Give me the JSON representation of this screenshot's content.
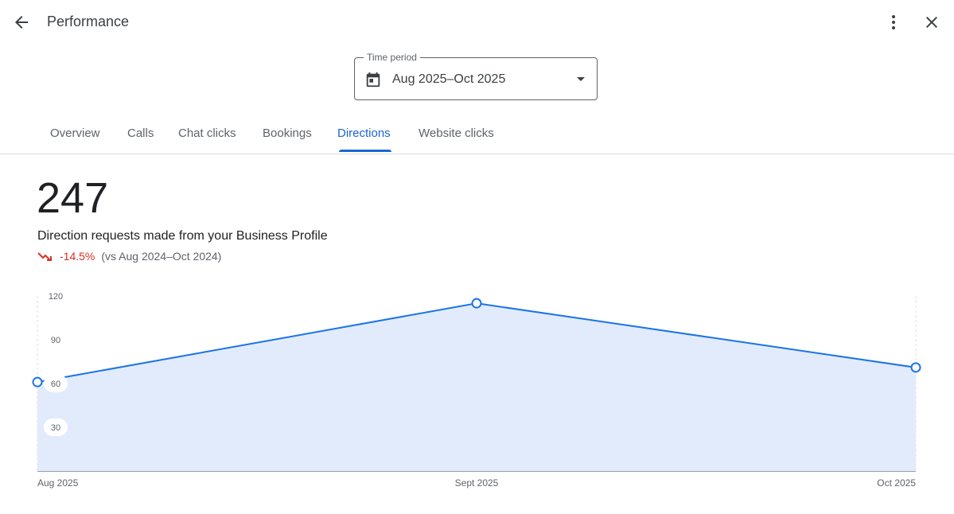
{
  "header": {
    "title": "Performance",
    "back_icon": "arrow-back-icon",
    "more_icon": "more-vert-icon",
    "close_icon": "close-icon"
  },
  "time_period": {
    "label": "Time period",
    "value": "Aug 2025–Oct 2025",
    "icon": "calendar-icon"
  },
  "tabs": [
    {
      "label": "Overview",
      "active": false
    },
    {
      "label": "Calls",
      "active": false
    },
    {
      "label": "Chat clicks",
      "active": false
    },
    {
      "label": "Bookings",
      "active": false
    },
    {
      "label": "Directions",
      "active": true
    },
    {
      "label": "Website clicks",
      "active": false
    }
  ],
  "summary": {
    "total": "247",
    "description": "Direction requests made from your Business Profile",
    "change": "-14.5%",
    "comparison": "(vs Aug 2024–Oct 2024)",
    "trend_icon": "trending-down-icon"
  },
  "colors": {
    "accent": "#1967d2",
    "line": "#1a73e8",
    "area_fill": "#e2ebfb",
    "negative": "#d93025"
  },
  "chart_data": {
    "type": "area",
    "x": [
      "Aug 2025",
      "Sept 2025",
      "Oct 2025"
    ],
    "series": [
      {
        "values": [
          61,
          115,
          71
        ]
      }
    ],
    "yticks": [
      120,
      90,
      60,
      30
    ],
    "ylim": [
      0,
      120
    ],
    "grid": "vertical dashed",
    "xlabel": "",
    "ylabel": ""
  }
}
